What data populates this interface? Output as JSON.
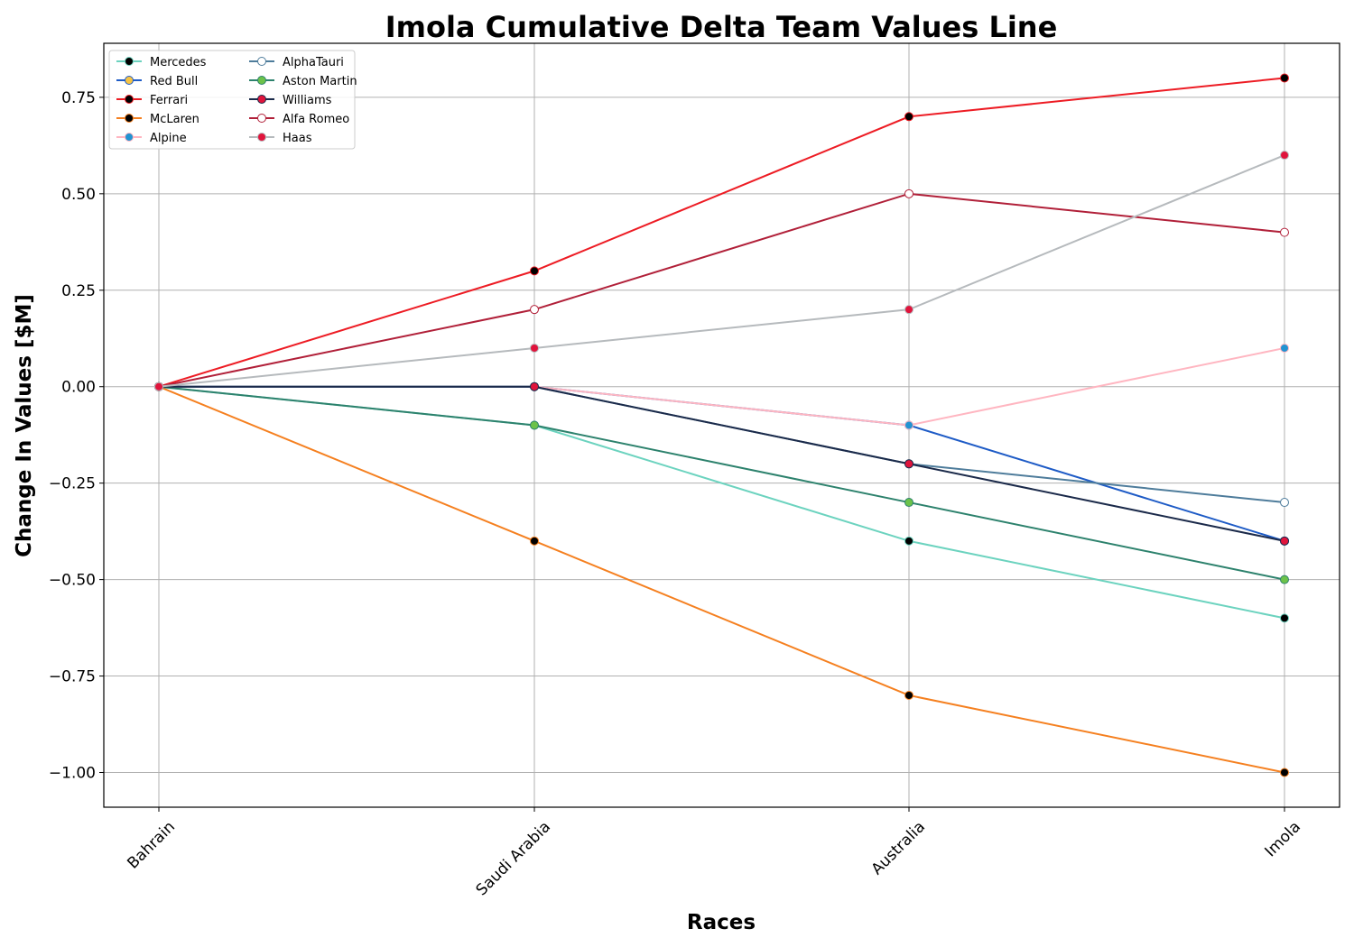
{
  "chart_data": {
    "type": "line",
    "title": "Imola Cumulative Delta Team Values Line",
    "xlabel": "Races",
    "ylabel": "Change In Values [$M]",
    "categories": [
      "Bahrain",
      "Saudi Arabia",
      "Australia",
      "Imola"
    ],
    "ylim": [
      -1.09,
      0.89
    ],
    "yticks": [
      {
        "value": 0.75,
        "label": "0.75"
      },
      {
        "value": 0.5,
        "label": "0.50"
      },
      {
        "value": 0.25,
        "label": "0.25"
      },
      {
        "value": 0.0,
        "label": "0.00"
      },
      {
        "value": -0.25,
        "label": "−0.25"
      },
      {
        "value": -0.5,
        "label": "−0.50"
      },
      {
        "value": -0.75,
        "label": "−0.75"
      },
      {
        "value": -1.0,
        "label": "−1.00"
      }
    ],
    "grid": true,
    "legend_placement": "top-left",
    "legend_columns": 2,
    "series": [
      {
        "name": "Mercedes",
        "values": [
          0,
          -0.1,
          -0.4,
          -0.6
        ],
        "line_color": "#6cd3bf",
        "marker_fill": "#000000",
        "marker_edge": "#6cd3bf"
      },
      {
        "name": "Red Bull",
        "values": [
          0,
          0,
          -0.1,
          -0.4
        ],
        "line_color": "#1e5bc6",
        "marker_fill": "#f6c343",
        "marker_edge": "#1e5bc6"
      },
      {
        "name": "Ferrari",
        "values": [
          0,
          0.3,
          0.7,
          0.8
        ],
        "line_color": "#ed1c24",
        "marker_fill": "#000000",
        "marker_edge": "#ed1c24"
      },
      {
        "name": "McLaren",
        "values": [
          0,
          -0.4,
          -0.8,
          -1.0
        ],
        "line_color": "#f58020",
        "marker_fill": "#000000",
        "marker_edge": "#f58020"
      },
      {
        "name": "Alpine",
        "values": [
          0,
          0,
          -0.1,
          0.1
        ],
        "line_color": "#ffb6c1",
        "marker_fill": "#2293d1",
        "marker_edge": "#ffb6c1"
      },
      {
        "name": "AlphaTauri",
        "values": [
          0,
          0,
          -0.2,
          -0.3
        ],
        "line_color": "#4e7c9b",
        "marker_fill": "#ffffff",
        "marker_edge": "#4e7c9b"
      },
      {
        "name": "Aston Martin",
        "values": [
          0,
          -0.1,
          -0.3,
          -0.5
        ],
        "line_color": "#2d826d",
        "marker_fill": "#6cc24a",
        "marker_edge": "#2d826d"
      },
      {
        "name": "Williams",
        "values": [
          0,
          0,
          -0.2,
          -0.4
        ],
        "line_color": "#1b2a4a",
        "marker_fill": "#e0143c",
        "marker_edge": "#1b2a4a"
      },
      {
        "name": "Alfa Romeo",
        "values": [
          0,
          0.2,
          0.5,
          0.4
        ],
        "line_color": "#b12039",
        "marker_fill": "#ffffff",
        "marker_edge": "#b12039"
      },
      {
        "name": "Haas",
        "values": [
          0,
          0.1,
          0.2,
          0.6
        ],
        "line_color": "#b6babd",
        "marker_fill": "#e0143c",
        "marker_edge": "#b6babd"
      }
    ]
  }
}
